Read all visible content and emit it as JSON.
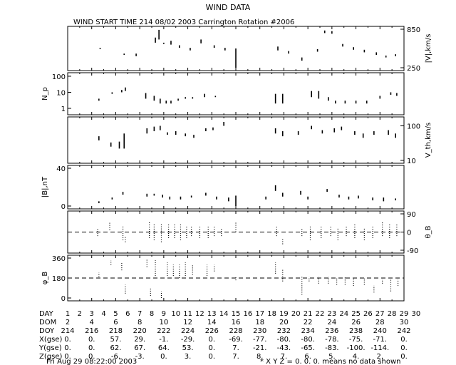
{
  "title": "WIND DATA",
  "subtitle": "WIND START TIME 214 08/02 2003 Carrington Rotation #2006",
  "footer_date": "Fri Aug 29 08:22:00 2003",
  "footer_note": "* X Y Z = 0. 0. 0. means no data shown",
  "chart_data": {
    "type": "scatter",
    "x_unit": "DOY",
    "x_range": [
      214,
      242
    ],
    "panels": [
      {
        "key": "v",
        "ylabel": "|V|,km/s",
        "ylim": [
          250,
          850
        ],
        "ticks": [
          {
            "v": 850,
            "label": "850"
          },
          {
            "v": 250,
            "label": "250"
          }
        ],
        "tick_side": "right",
        "segments": [
          [
            216.7,
            540,
            560
          ],
          [
            218.7,
            450,
            470
          ],
          [
            219.7,
            430,
            470
          ],
          [
            221.3,
            640,
            720
          ],
          [
            221.6,
            690,
            840
          ],
          [
            222.0,
            620,
            640
          ],
          [
            222.6,
            610,
            670
          ],
          [
            223.3,
            560,
            600
          ],
          [
            224.2,
            520,
            560
          ],
          [
            225.1,
            630,
            690
          ],
          [
            226.2,
            560,
            600
          ],
          [
            227.1,
            520,
            560
          ],
          [
            228.0,
            250,
            550
          ],
          [
            231.5,
            520,
            580
          ],
          [
            232.4,
            470,
            510
          ],
          [
            233.5,
            360,
            410
          ],
          [
            234.8,
            500,
            540
          ],
          [
            235.4,
            790,
            830
          ],
          [
            236.0,
            780,
            820
          ],
          [
            236.9,
            580,
            620
          ],
          [
            237.8,
            530,
            570
          ],
          [
            238.7,
            490,
            530
          ],
          [
            239.7,
            450,
            490
          ],
          [
            240.5,
            410,
            440
          ],
          [
            241.3,
            430,
            460
          ]
        ]
      },
      {
        "key": "np",
        "ylabel": "N_p",
        "ylog": true,
        "ylim": [
          0.6,
          110
        ],
        "ticks": [
          {
            "v": 100,
            "label": "100"
          },
          {
            "v": 10,
            "label": "10"
          },
          {
            "v": 1,
            "label": "1"
          }
        ],
        "tick_side": "left",
        "segments": [
          [
            216.6,
            3,
            4
          ],
          [
            217.7,
            8,
            10
          ],
          [
            218.5,
            10,
            14
          ],
          [
            218.8,
            12,
            20
          ],
          [
            220.5,
            4,
            9
          ],
          [
            221.2,
            3,
            6
          ],
          [
            221.7,
            2,
            4
          ],
          [
            222.2,
            2,
            3
          ],
          [
            222.6,
            2,
            3
          ],
          [
            223.2,
            3,
            4
          ],
          [
            223.8,
            4,
            5
          ],
          [
            224.4,
            4,
            5
          ],
          [
            225.4,
            5,
            8
          ],
          [
            226.3,
            5,
            6
          ],
          [
            231.3,
            2,
            8
          ],
          [
            231.9,
            2,
            8
          ],
          [
            234.3,
            5,
            12
          ],
          [
            234.9,
            4,
            12
          ],
          [
            235.7,
            3,
            5
          ],
          [
            236.3,
            2,
            3
          ],
          [
            237.1,
            2,
            3
          ],
          [
            238.0,
            2,
            3
          ],
          [
            238.9,
            2,
            3
          ],
          [
            240.0,
            4,
            6
          ],
          [
            240.9,
            7,
            10
          ],
          [
            241.4,
            6,
            9
          ]
        ]
      },
      {
        "key": "vth",
        "ylabel": "V_th,km/s",
        "ylog": true,
        "ylim": [
          10,
          150
        ],
        "ticks": [
          {
            "v": 100,
            "label": "100"
          },
          {
            "v": 10,
            "label": "10"
          }
        ],
        "tick_side": "right",
        "segments": [
          [
            216.6,
            38,
            50
          ],
          [
            217.6,
            25,
            33
          ],
          [
            218.3,
            22,
            35
          ],
          [
            218.7,
            22,
            60
          ],
          [
            220.6,
            60,
            85
          ],
          [
            221.2,
            70,
            95
          ],
          [
            221.7,
            75,
            100
          ],
          [
            222.3,
            55,
            65
          ],
          [
            223.0,
            55,
            70
          ],
          [
            223.8,
            50,
            60
          ],
          [
            224.5,
            45,
            55
          ],
          [
            225.5,
            70,
            85
          ],
          [
            226.1,
            75,
            90
          ],
          [
            227.0,
            100,
            130
          ],
          [
            231.3,
            60,
            85
          ],
          [
            231.9,
            50,
            70
          ],
          [
            233.2,
            55,
            70
          ],
          [
            234.3,
            80,
            100
          ],
          [
            235.2,
            60,
            75
          ],
          [
            236.2,
            65,
            85
          ],
          [
            236.8,
            75,
            95
          ],
          [
            237.9,
            55,
            70
          ],
          [
            238.6,
            45,
            60
          ],
          [
            239.5,
            55,
            70
          ],
          [
            240.7,
            55,
            75
          ],
          [
            241.3,
            45,
            60
          ]
        ]
      },
      {
        "key": "b",
        "ylabel": "|B|,nT",
        "ylim": [
          0,
          40
        ],
        "ticks": [
          {
            "v": 40,
            "label": "40"
          },
          {
            "v": 0,
            "label": "0"
          }
        ],
        "tick_side": "left",
        "segments": [
          [
            216.6,
            3,
            5
          ],
          [
            217.7,
            7,
            9
          ],
          [
            218.6,
            12,
            15
          ],
          [
            220.6,
            10,
            13
          ],
          [
            221.2,
            11,
            13
          ],
          [
            221.9,
            9,
            12
          ],
          [
            222.5,
            7,
            10
          ],
          [
            223.4,
            7,
            10
          ],
          [
            224.3,
            9,
            11
          ],
          [
            225.5,
            11,
            14
          ],
          [
            226.4,
            7,
            10
          ],
          [
            227.4,
            5,
            9
          ],
          [
            228.0,
            0,
            11
          ],
          [
            230.5,
            7,
            10
          ],
          [
            231.3,
            16,
            22
          ],
          [
            231.9,
            10,
            14
          ],
          [
            233.4,
            12,
            16
          ],
          [
            234.0,
            7,
            10
          ],
          [
            235.6,
            15,
            18
          ],
          [
            236.6,
            9,
            12
          ],
          [
            237.4,
            7,
            10
          ],
          [
            238.2,
            8,
            11
          ],
          [
            239.4,
            6,
            9
          ],
          [
            240.3,
            5,
            9
          ],
          [
            241.3,
            6,
            8
          ]
        ]
      },
      {
        "key": "thetab",
        "ylabel": "θ_B",
        "ylim": [
          -90,
          90
        ],
        "ticks": [
          {
            "v": 90,
            "label": "90"
          },
          {
            "v": 0,
            "label": "0"
          },
          {
            "v": -90,
            "label": "-90"
          }
        ],
        "tick_side": "right",
        "reference_line": 0,
        "segments": [
          [
            216.5,
            -20,
            20
          ],
          [
            217.5,
            10,
            50
          ],
          [
            218.6,
            -40,
            30
          ],
          [
            218.8,
            -50,
            -20
          ],
          [
            220.8,
            -30,
            50
          ],
          [
            221.2,
            -40,
            40
          ],
          [
            221.8,
            -50,
            40
          ],
          [
            222.4,
            -30,
            40
          ],
          [
            222.9,
            -30,
            40
          ],
          [
            223.4,
            -40,
            40
          ],
          [
            223.9,
            -30,
            30
          ],
          [
            224.3,
            -20,
            30
          ],
          [
            225.0,
            -30,
            30
          ],
          [
            225.7,
            -30,
            30
          ],
          [
            226.2,
            -20,
            30
          ],
          [
            226.8,
            -20,
            20
          ],
          [
            228.0,
            0,
            50
          ],
          [
            231.4,
            -20,
            30
          ],
          [
            231.9,
            -60,
            -30
          ],
          [
            233.5,
            -20,
            20
          ],
          [
            234.2,
            -40,
            30
          ],
          [
            235.1,
            -30,
            30
          ],
          [
            235.9,
            -20,
            30
          ],
          [
            236.5,
            -40,
            20
          ],
          [
            237.2,
            -20,
            30
          ],
          [
            237.9,
            -30,
            40
          ],
          [
            238.7,
            -40,
            20
          ],
          [
            239.4,
            -30,
            30
          ],
          [
            240.2,
            -20,
            50
          ],
          [
            240.8,
            -30,
            40
          ],
          [
            241.4,
            -20,
            40
          ]
        ]
      },
      {
        "key": "phib",
        "ylabel": "φ_B",
        "ylim": [
          0,
          360
        ],
        "ticks": [
          {
            "v": 360,
            "label": "360"
          },
          {
            "v": 180,
            "label": "180"
          },
          {
            "v": 0,
            "label": "0"
          }
        ],
        "tick_side": "left",
        "reference_line": 180,
        "segments": [
          [
            216.6,
            190,
            230
          ],
          [
            217.6,
            300,
            340
          ],
          [
            218.5,
            250,
            320
          ],
          [
            218.8,
            40,
            120
          ],
          [
            220.6,
            280,
            350
          ],
          [
            220.9,
            20,
            90
          ],
          [
            221.3,
            200,
            340
          ],
          [
            221.8,
            0,
            60
          ],
          [
            222.3,
            200,
            320
          ],
          [
            222.8,
            200,
            300
          ],
          [
            223.3,
            180,
            300
          ],
          [
            223.8,
            200,
            320
          ],
          [
            224.4,
            210,
            300
          ],
          [
            225.6,
            200,
            300
          ],
          [
            226.2,
            240,
            300
          ],
          [
            228.0,
            160,
            190
          ],
          [
            231.3,
            220,
            320
          ],
          [
            231.9,
            150,
            260
          ],
          [
            233.5,
            30,
            190
          ],
          [
            234.1,
            150,
            190
          ],
          [
            234.9,
            130,
            190
          ],
          [
            235.7,
            130,
            190
          ],
          [
            236.4,
            120,
            180
          ],
          [
            237.1,
            120,
            190
          ],
          [
            237.8,
            110,
            180
          ],
          [
            238.7,
            120,
            180
          ],
          [
            239.5,
            50,
            110
          ],
          [
            240.2,
            130,
            170
          ],
          [
            240.9,
            60,
            170
          ],
          [
            241.5,
            110,
            170
          ]
        ]
      }
    ],
    "table": {
      "row_labels": [
        "DAY",
        "DOM",
        "DOY",
        "X(gse)",
        "Y(gse)",
        "Z(gse)"
      ],
      "day_ticks": [
        "1",
        "2",
        "3",
        "4",
        "5",
        "6",
        "7",
        "8",
        "9",
        "10",
        "11",
        "12",
        "13",
        "14",
        "15",
        "16",
        "17",
        "18",
        "19",
        "20",
        "21",
        "22",
        "23",
        "24",
        "25",
        "26",
        "27",
        "28",
        "29",
        "30"
      ],
      "dom": [
        "2",
        "4",
        "6",
        "8",
        "10",
        "12",
        "14",
        "16",
        "18",
        "20",
        "22",
        "24",
        "26",
        "28",
        "30"
      ],
      "doy": [
        "214",
        "216",
        "218",
        "220",
        "222",
        "224",
        "226",
        "228",
        "230",
        "232",
        "234",
        "236",
        "238",
        "240",
        "242"
      ],
      "x_gse": [
        "0.",
        "0.",
        "57.",
        "29.",
        "-1.",
        "-29.",
        "0.",
        "-69.",
        "-77.",
        "-80.",
        "-80.",
        "-78.",
        "-75.",
        "-71.",
        "0."
      ],
      "y_gse": [
        "0.",
        "0.",
        "62.",
        "67.",
        "64.",
        "53.",
        "0.",
        "7.",
        "-21.",
        "-43.",
        "-65.",
        "-83.",
        "-100.",
        "-114.",
        "0."
      ],
      "z_gse": [
        "0.",
        "0.",
        "-6.",
        "-3.",
        "0.",
        "3.",
        "0.",
        "7.",
        "8.",
        "7.",
        "6.",
        "5.",
        "4.",
        "2.",
        "0."
      ]
    }
  }
}
